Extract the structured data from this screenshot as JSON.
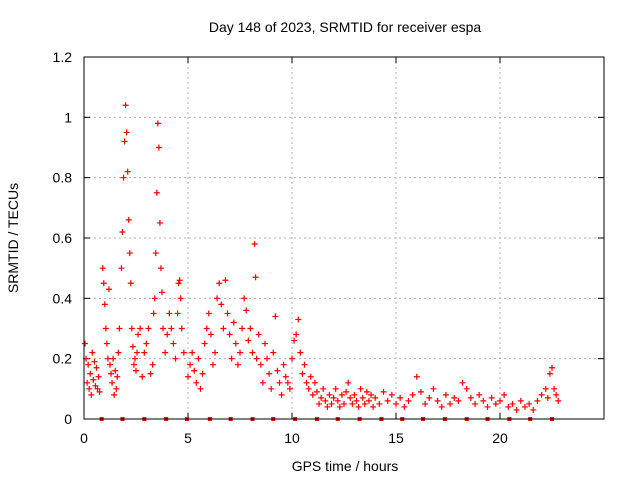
{
  "chart_data": {
    "type": "scatter",
    "title": "Day 148 of 2023, SRMTID for receiver espa",
    "xlabel": "GPS time / hours",
    "ylabel": "SRMTID / TECUs",
    "xlim": [
      0,
      25
    ],
    "ylim": [
      0,
      1.2
    ],
    "xticks": [
      0,
      5,
      10,
      15,
      20
    ],
    "xtick_labels": [
      "0",
      "5",
      "10",
      "15",
      "20"
    ],
    "yticks": [
      0,
      0.2,
      0.4,
      0.6,
      0.8,
      1.0,
      1.2
    ],
    "ytick_labels": [
      "0",
      "0.2",
      "0.4",
      "0.6",
      "0.8",
      "1",
      "1.2"
    ],
    "grid": true,
    "marker": "+",
    "color": "#ff0000",
    "series": [
      {
        "name": "SRMTID",
        "x": [
          0.05,
          0.1,
          0.15,
          0.2,
          0.25,
          0.3,
          0.35,
          0.4,
          0.45,
          0.5,
          0.55,
          0.6,
          0.65,
          0.7,
          0.75,
          0.9,
          0.95,
          1.0,
          1.05,
          1.1,
          1.15,
          1.2,
          1.25,
          1.3,
          1.35,
          1.4,
          1.45,
          1.5,
          1.55,
          1.6,
          1.65,
          1.7,
          1.8,
          1.85,
          1.9,
          1.95,
          2.0,
          2.05,
          2.1,
          2.15,
          2.2,
          2.25,
          2.3,
          2.35,
          2.4,
          2.45,
          2.5,
          2.55,
          2.6,
          2.7,
          2.8,
          2.9,
          3.0,
          3.1,
          3.2,
          3.3,
          3.35,
          3.4,
          3.45,
          3.5,
          3.55,
          3.6,
          3.65,
          3.7,
          3.75,
          3.8,
          3.9,
          4.0,
          4.1,
          4.2,
          4.3,
          4.4,
          4.5,
          4.55,
          4.6,
          4.65,
          4.7,
          4.8,
          5.0,
          5.1,
          5.2,
          5.3,
          5.4,
          5.5,
          5.6,
          5.7,
          5.8,
          5.9,
          6.0,
          6.1,
          6.2,
          6.3,
          6.4,
          6.5,
          6.6,
          6.7,
          6.8,
          6.9,
          7.0,
          7.1,
          7.2,
          7.3,
          7.4,
          7.5,
          7.6,
          7.7,
          7.8,
          7.9,
          8.0,
          8.1,
          8.2,
          8.25,
          8.3,
          8.4,
          8.5,
          8.6,
          8.7,
          8.8,
          8.9,
          9.0,
          9.1,
          9.2,
          9.3,
          9.4,
          9.5,
          9.6,
          9.7,
          9.8,
          9.9,
          10.0,
          10.1,
          10.2,
          10.3,
          10.4,
          10.5,
          10.6,
          10.7,
          10.8,
          10.9,
          11.0,
          11.1,
          11.2,
          11.3,
          11.4,
          11.5,
          11.6,
          11.7,
          11.8,
          11.9,
          12.0,
          12.1,
          12.2,
          12.3,
          12.4,
          12.5,
          12.6,
          12.7,
          12.8,
          12.9,
          13.0,
          13.1,
          13.2,
          13.3,
          13.4,
          13.5,
          13.6,
          13.7,
          13.8,
          13.9,
          14.0,
          14.2,
          14.4,
          14.6,
          14.8,
          15.0,
          15.2,
          15.4,
          15.6,
          15.8,
          16.0,
          16.2,
          16.4,
          16.6,
          16.8,
          17.0,
          17.2,
          17.4,
          17.6,
          17.8,
          18.0,
          18.2,
          18.4,
          18.6,
          18.8,
          19.0,
          19.2,
          19.4,
          19.6,
          19.8,
          20.0,
          20.2,
          20.4,
          20.6,
          20.8,
          21.0,
          21.2,
          21.4,
          21.6,
          21.8,
          22.0,
          22.2,
          22.3,
          22.4,
          22.5,
          22.6,
          22.7,
          22.8
        ],
        "y": [
          0.25,
          0.2,
          0.12,
          0.18,
          0.1,
          0.15,
          0.08,
          0.22,
          0.13,
          0.19,
          0.11,
          0.17,
          0.1,
          0.14,
          0.09,
          0.5,
          0.45,
          0.38,
          0.3,
          0.25,
          0.2,
          0.43,
          0.18,
          0.15,
          0.12,
          0.2,
          0.08,
          0.16,
          0.1,
          0.14,
          0.22,
          0.3,
          0.5,
          0.62,
          0.8,
          0.92,
          1.04,
          0.95,
          0.82,
          0.66,
          0.55,
          0.45,
          0.3,
          0.24,
          0.18,
          0.2,
          0.16,
          0.22,
          0.28,
          0.3,
          0.14,
          0.22,
          0.25,
          0.3,
          0.15,
          0.18,
          0.35,
          0.4,
          0.55,
          0.75,
          0.98,
          0.9,
          0.65,
          0.5,
          0.42,
          0.3,
          0.22,
          0.28,
          0.35,
          0.3,
          0.25,
          0.2,
          0.35,
          0.45,
          0.46,
          0.4,
          0.3,
          0.22,
          0.14,
          0.18,
          0.22,
          0.16,
          0.12,
          0.2,
          0.1,
          0.15,
          0.25,
          0.3,
          0.35,
          0.28,
          0.18,
          0.22,
          0.4,
          0.45,
          0.38,
          0.3,
          0.46,
          0.35,
          0.28,
          0.2,
          0.32,
          0.25,
          0.18,
          0.22,
          0.3,
          0.4,
          0.36,
          0.26,
          0.3,
          0.22,
          0.58,
          0.47,
          0.2,
          0.28,
          0.18,
          0.12,
          0.25,
          0.2,
          0.15,
          0.1,
          0.22,
          0.34,
          0.16,
          0.12,
          0.08,
          0.18,
          0.14,
          0.12,
          0.1,
          0.2,
          0.26,
          0.28,
          0.33,
          0.22,
          0.15,
          0.18,
          0.12,
          0.1,
          0.14,
          0.08,
          0.12,
          0.09,
          0.05,
          0.07,
          0.1,
          0.06,
          0.04,
          0.08,
          0.05,
          0.07,
          0.1,
          0.06,
          0.04,
          0.08,
          0.05,
          0.09,
          0.12,
          0.07,
          0.05,
          0.08,
          0.06,
          0.04,
          0.1,
          0.07,
          0.05,
          0.09,
          0.06,
          0.08,
          0.04,
          0.07,
          0.05,
          0.09,
          0.06,
          0.08,
          0.05,
          0.07,
          0.04,
          0.06,
          0.08,
          0.14,
          0.09,
          0.05,
          0.07,
          0.1,
          0.06,
          0.04,
          0.08,
          0.05,
          0.07,
          0.06,
          0.12,
          0.1,
          0.07,
          0.05,
          0.08,
          0.06,
          0.04,
          0.07,
          0.05,
          0.06,
          0.08,
          0.04,
          0.05,
          0.03,
          0.06,
          0.04,
          0.05,
          0.03,
          0.06,
          0.08,
          0.1,
          0.07,
          0.15,
          0.17,
          0.1,
          0.08,
          0.06
        ]
      }
    ],
    "baseline_markers_x": [
      0.85,
      1.85,
      2.9,
      3.95,
      4.95,
      6.05,
      7.05,
      8.1,
      9.1,
      10.15,
      11.2,
      12.2,
      13.25,
      14.3,
      15.3,
      16.3,
      17.35,
      18.4,
      19.4,
      20.45,
      21.45,
      22.5
    ]
  }
}
